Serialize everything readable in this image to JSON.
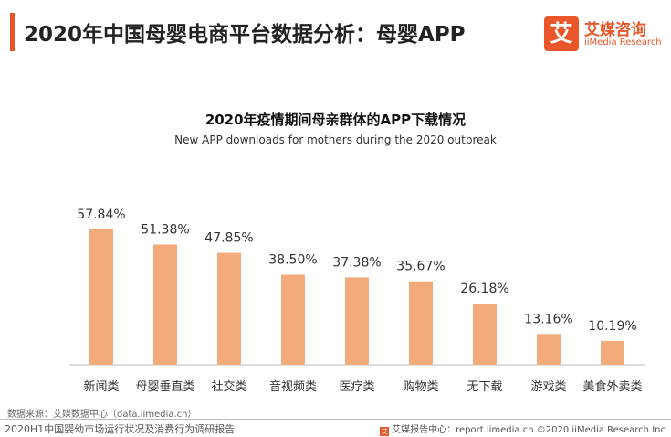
{
  "header": {
    "title": "2020年中国母婴电商平台数据分析：母婴APP",
    "logo_glyph": "艾",
    "logo_cn": "艾媒咨询",
    "logo_en": "iiMedia Research"
  },
  "chart_data": {
    "type": "bar",
    "title": "2020年疫情期间母亲群体的APP下载情况",
    "subtitle": "New APP downloads for mothers during the 2020 outbreak",
    "categories": [
      "新闻类",
      "母婴垂直类",
      "社交类",
      "音视频类",
      "医疗类",
      "购物类",
      "无下载",
      "游戏类",
      "美食外卖类"
    ],
    "values": [
      57.84,
      51.38,
      47.85,
      38.5,
      37.38,
      35.67,
      26.18,
      13.16,
      10.19
    ],
    "labels": [
      "57.84%",
      "51.38%",
      "47.85%",
      "38.50%",
      "37.38%",
      "35.67%",
      "26.18%",
      "13.16%",
      "10.19%"
    ],
    "unit": "%",
    "ylim": [
      0,
      70
    ],
    "xlabel": "",
    "ylabel": "",
    "bar_color": "#f4ab7c",
    "grid": false,
    "legend": "none"
  },
  "footer": {
    "source": "数据来源：艾媒数据中心（data.iimedia.cn）",
    "report": "2020H1中国婴幼市场运行状况及消费行为调研报告",
    "icon_glyph": "艾",
    "right": "艾媒报告中心：report.iimedia.cn   ©2020  iiMedia Research  Inc"
  },
  "colors": {
    "accent": "#e8562a",
    "bar": "#f4ab7c",
    "axis": "#bfbfbf"
  }
}
